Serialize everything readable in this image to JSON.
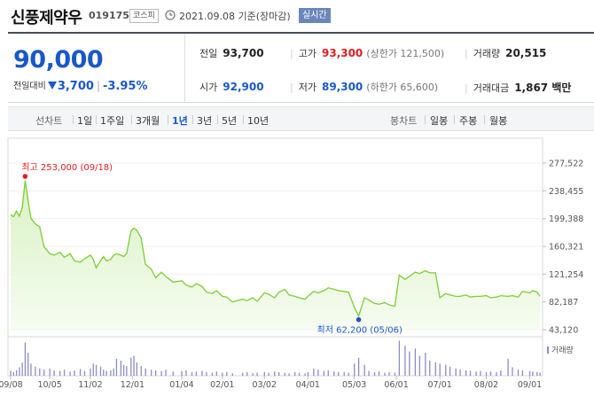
{
  "header": {
    "stock_name": "신풍제약우",
    "stock_code": "019175",
    "market": "코스피",
    "base_time": "2021.09.08 기준(장마감)",
    "realtime_label": "실시간"
  },
  "quote": {
    "current_price": "90,000",
    "change_label": "전일대비",
    "change_amount": "3,700",
    "change_rate": "-3.95%",
    "stats": [
      {
        "label": "전일",
        "value": "93,700",
        "color": "default"
      },
      {
        "label": "고가",
        "value": "93,300",
        "sub": "(상한가 121,500)",
        "color": "blue"
      },
      {
        "label": "거래량",
        "value": "20,515",
        "color": "default"
      },
      {
        "label": "시가",
        "value": "92,900",
        "color": "blue"
      },
      {
        "label": "저가",
        "value": "89,300",
        "sub": "(하한가 65,600)",
        "color": "blue"
      },
      {
        "label": "거래대금",
        "value": "1,867 백만",
        "color": "default"
      }
    ]
  },
  "period_bar": {
    "line_chart_label": "선차트",
    "line_periods": [
      "1일",
      "1주일",
      "3개월",
      "1년",
      "3년",
      "5년",
      "10년"
    ],
    "active_period": "1년",
    "candle_chart_label": "봉차트",
    "candle_periods": [
      "일봉",
      "주봉",
      "월봉"
    ]
  },
  "colors": {
    "accent_blue": "#1a57c9",
    "up_red": "#e01e1e",
    "line_green": "#7ccd35",
    "area_green": "#d9f2c4",
    "volume": "#8c8cc9"
  },
  "chart_data": {
    "type": "area",
    "y_ticks": [
      "277,522",
      "238,455",
      "199,388",
      "160,321",
      "121,254",
      "82,187",
      "43,120"
    ],
    "ylim": [
      43120,
      277522
    ],
    "x_ticks": [
      "09/08",
      "10/05",
      "11/02",
      "12/01",
      "01/04",
      "02/01",
      "03/02",
      "04/01",
      "05/03",
      "06/01",
      "07/01",
      "08/02",
      "09/01"
    ],
    "high_annotation": "최고 253,000 (09/18)",
    "low_annotation": "최저 62,200 (05/06)",
    "volume_legend": "거래량",
    "x": [
      "2020-09-08",
      "2020-09-10",
      "2020-09-12",
      "2020-09-14",
      "2020-09-16",
      "2020-09-18",
      "2020-09-20",
      "2020-09-22",
      "2020-09-25",
      "2020-09-28",
      "2020-10-01",
      "2020-10-05",
      "2020-10-08",
      "2020-10-12",
      "2020-10-15",
      "2020-10-19",
      "2020-10-22",
      "2020-10-26",
      "2020-10-29",
      "2020-11-02",
      "2020-11-04",
      "2020-11-06",
      "2020-11-09",
      "2020-11-11",
      "2020-11-13",
      "2020-11-16",
      "2020-11-18",
      "2020-11-20",
      "2020-11-23",
      "2020-11-25",
      "2020-11-27",
      "2020-11-30",
      "2020-12-02",
      "2020-12-04",
      "2020-12-07",
      "2020-12-10",
      "2020-12-14",
      "2020-12-17",
      "2020-12-21",
      "2020-12-24",
      "2020-12-29",
      "2021-01-04",
      "2021-01-07",
      "2021-01-11",
      "2021-01-14",
      "2021-01-18",
      "2021-01-21",
      "2021-01-25",
      "2021-01-28",
      "2021-02-01",
      "2021-02-04",
      "2021-02-08",
      "2021-02-15",
      "2021-02-18",
      "2021-02-22",
      "2021-02-25",
      "2021-03-02",
      "2021-03-05",
      "2021-03-09",
      "2021-03-12",
      "2021-03-16",
      "2021-03-19",
      "2021-03-23",
      "2021-03-26",
      "2021-03-30",
      "2021-04-01",
      "2021-04-05",
      "2021-04-08",
      "2021-04-12",
      "2021-04-15",
      "2021-04-19",
      "2021-04-22",
      "2021-04-26",
      "2021-04-29",
      "2021-05-03",
      "2021-05-06",
      "2021-05-10",
      "2021-05-13",
      "2021-05-17",
      "2021-05-20",
      "2021-05-24",
      "2021-05-27",
      "2021-05-31",
      "2021-06-03",
      "2021-06-07",
      "2021-06-10",
      "2021-06-14",
      "2021-06-17",
      "2021-06-21",
      "2021-06-24",
      "2021-06-28",
      "2021-07-01",
      "2021-07-05",
      "2021-07-08",
      "2021-07-12",
      "2021-07-15",
      "2021-07-19",
      "2021-07-22",
      "2021-07-26",
      "2021-07-29",
      "2021-08-02",
      "2021-08-05",
      "2021-08-09",
      "2021-08-12",
      "2021-08-17",
      "2021-08-20",
      "2021-08-24",
      "2021-08-27",
      "2021-09-01",
      "2021-09-03",
      "2021-09-06",
      "2021-09-08"
    ],
    "series": [
      {
        "values": [
          205000,
          202000,
          210000,
          203000,
          215000,
          253000,
          225000,
          200000,
          192000,
          188000,
          160000,
          150000,
          148000,
          152000,
          145000,
          150000,
          140000,
          138000,
          143000,
          148000,
          142000,
          130000,
          140000,
          146000,
          140000,
          142000,
          148000,
          150000,
          148000,
          146000,
          150000,
          182000,
          186000,
          183000,
          172000,
          135000,
          128000,
          116000,
          124000,
          118000,
          110000,
          112000,
          106000,
          103000,
          108000,
          104000,
          96000,
          94000,
          98000,
          90000,
          89000,
          82000,
          86000,
          84000,
          88000,
          83000,
          95000,
          93000,
          88000,
          96000,
          100000,
          92000,
          90000,
          88000,
          86000,
          90000,
          97000,
          95000,
          98000,
          102000,
          100000,
          98000,
          97000,
          96000,
          75000,
          62200,
          88000,
          85000,
          80000,
          79000,
          81000,
          78000,
          76000,
          120000,
          114000,
          118000,
          124000,
          122000,
          126000,
          123000,
          123000,
          88000,
          94000,
          92000,
          90000,
          90000,
          92000,
          89000,
          90000,
          90000,
          91000,
          88000,
          89000,
          91000,
          90000,
          91000,
          89000,
          97000,
          95000,
          98000,
          96000,
          90000
        ]
      },
      {
        "values": [
          8,
          6,
          9,
          14,
          22,
          55,
          38,
          20,
          15,
          12,
          10,
          12,
          9,
          8,
          10,
          7,
          9,
          11,
          8,
          12,
          20,
          18,
          15,
          10,
          8,
          9,
          12,
          28,
          25,
          18,
          16,
          30,
          33,
          22,
          16,
          12,
          10,
          9,
          8,
          10,
          7,
          8,
          9,
          6,
          7,
          8,
          6,
          5,
          7,
          5,
          6,
          4,
          5,
          6,
          4,
          5,
          6,
          5,
          7,
          6,
          5,
          4,
          6,
          5,
          4,
          6,
          12,
          10,
          8,
          9,
          7,
          6,
          6,
          5,
          20,
          30,
          18,
          8,
          6,
          7,
          5,
          6,
          5,
          58,
          50,
          40,
          45,
          33,
          38,
          25,
          22,
          20,
          18,
          15,
          12,
          10,
          9,
          8,
          7,
          8,
          6,
          7,
          6,
          9,
          28,
          14,
          10,
          9,
          8,
          7,
          6,
          5
        ]
      }
    ]
  }
}
